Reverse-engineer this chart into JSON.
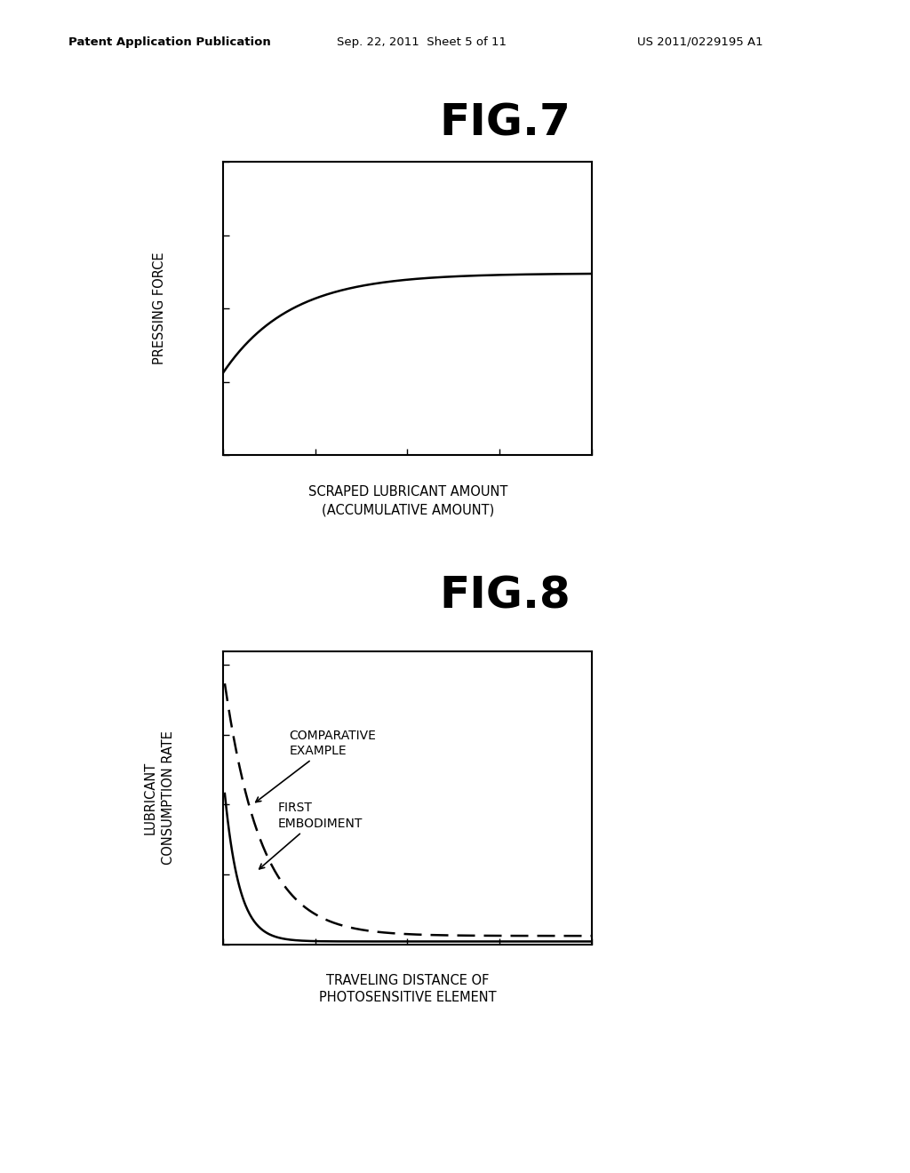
{
  "bg_color": "#ffffff",
  "header_left": "Patent Application Publication",
  "header_mid": "Sep. 22, 2011  Sheet 5 of 11",
  "header_right": "US 2011/0229195 A1",
  "fig7_title": "FIG.7",
  "fig7_ylabel": "PRESSING FORCE",
  "fig7_xlabel_line1": "SCRAPED LUBRICANT AMOUNT",
  "fig7_xlabel_line2": "(ACCUMULATIVE AMOUNT)",
  "fig8_title": "FIG.8",
  "fig8_ylabel_line1": "LUBRICANT",
  "fig8_ylabel_line2": "CONSUMPTION RATE",
  "fig8_xlabel_line1": "TRAVELING DISTANCE OF",
  "fig8_xlabel_line2": "PHOTOSENSITIVE ELEMENT",
  "fig8_label_comparative": "COMPARATIVE\nEXAMPLE",
  "fig8_label_first": "FIRST\nEMBODIMENT",
  "line_color": "#000000"
}
